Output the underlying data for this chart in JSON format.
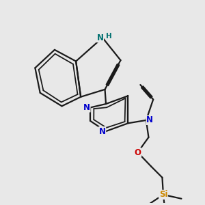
{
  "bg_color": "#e8e8e8",
  "bond_color": "#1a1a1a",
  "N_color": "#0000cc",
  "NH_color": "#007070",
  "O_color": "#cc0000",
  "Si_color": "#cc8800",
  "line_width": 1.6,
  "figsize": [
    3.0,
    3.0
  ],
  "dpi": 100,
  "xlim": [
    0,
    10
  ],
  "ylim": [
    0,
    10
  ]
}
